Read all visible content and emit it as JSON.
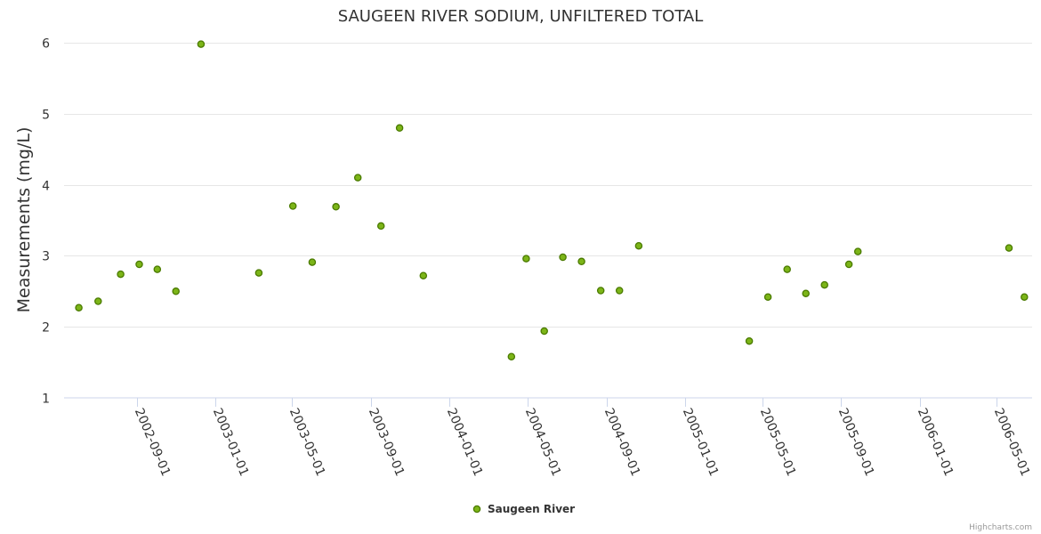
{
  "chart_data": {
    "type": "scatter",
    "title": "SAUGEEN RIVER SODIUM, UNFILTERED TOTAL",
    "xlabel": "",
    "ylabel": "Measurements (mg/L)",
    "ylim": [
      1,
      6
    ],
    "yticks": [
      1,
      2,
      3,
      4,
      5,
      6
    ],
    "xlim": [
      "2002-05-11",
      "2006-06-25"
    ],
    "xticks": [
      "2002-09-01",
      "2003-01-01",
      "2003-05-01",
      "2003-09-01",
      "2004-01-01",
      "2004-05-01",
      "2004-09-01",
      "2005-01-01",
      "2005-05-01",
      "2005-09-01",
      "2006-01-01",
      "2006-05-01"
    ],
    "grid": true,
    "legend": "bottom-center",
    "series": [
      {
        "name": "Saugeen River",
        "color": "#7cb518",
        "border_color": "#4a7a00",
        "points": [
          {
            "x": "2002-06-03",
            "y": 2.27
          },
          {
            "x": "2002-07-03",
            "y": 2.36
          },
          {
            "x": "2002-08-07",
            "y": 2.74
          },
          {
            "x": "2002-09-05",
            "y": 2.88
          },
          {
            "x": "2002-10-03",
            "y": 2.81
          },
          {
            "x": "2002-11-01",
            "y": 2.5
          },
          {
            "x": "2002-12-10",
            "y": 5.98
          },
          {
            "x": "2003-03-10",
            "y": 2.76
          },
          {
            "x": "2003-05-02",
            "y": 3.7
          },
          {
            "x": "2003-06-01",
            "y": 2.91
          },
          {
            "x": "2003-07-08",
            "y": 3.69
          },
          {
            "x": "2003-08-11",
            "y": 4.1
          },
          {
            "x": "2003-09-16",
            "y": 3.42
          },
          {
            "x": "2003-10-15",
            "y": 4.8
          },
          {
            "x": "2003-11-21",
            "y": 2.72
          },
          {
            "x": "2004-04-06",
            "y": 1.58
          },
          {
            "x": "2004-04-29",
            "y": 2.96
          },
          {
            "x": "2004-05-27",
            "y": 1.94
          },
          {
            "x": "2004-06-25",
            "y": 2.98
          },
          {
            "x": "2004-07-24",
            "y": 2.92
          },
          {
            "x": "2004-08-23",
            "y": 2.51
          },
          {
            "x": "2004-09-21",
            "y": 2.51
          },
          {
            "x": "2004-10-21",
            "y": 3.14
          },
          {
            "x": "2005-04-11",
            "y": 1.8
          },
          {
            "x": "2005-05-10",
            "y": 2.42
          },
          {
            "x": "2005-06-09",
            "y": 2.81
          },
          {
            "x": "2005-07-08",
            "y": 2.47
          },
          {
            "x": "2005-08-06",
            "y": 2.59
          },
          {
            "x": "2005-09-13",
            "y": 2.88
          },
          {
            "x": "2005-09-27",
            "y": 3.06
          },
          {
            "x": "2006-05-20",
            "y": 3.11
          },
          {
            "x": "2006-06-13",
            "y": 2.42
          }
        ]
      }
    ]
  },
  "credits": "Highcharts.com"
}
